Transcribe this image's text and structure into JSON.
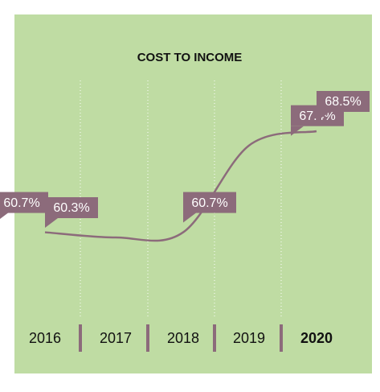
{
  "chart_data": {
    "type": "line",
    "title": "COST TO INCOME",
    "categories": [
      "2016",
      "2017",
      "2018",
      "2019",
      "2020"
    ],
    "values": [
      60.7,
      60.3,
      60.7,
      67.4,
      68.5
    ],
    "value_labels": [
      "60.7%",
      "60.3%",
      "60.7%",
      "67.4%",
      "68.5%"
    ],
    "color": "#8c6b7b",
    "background": "#bfdca3"
  }
}
